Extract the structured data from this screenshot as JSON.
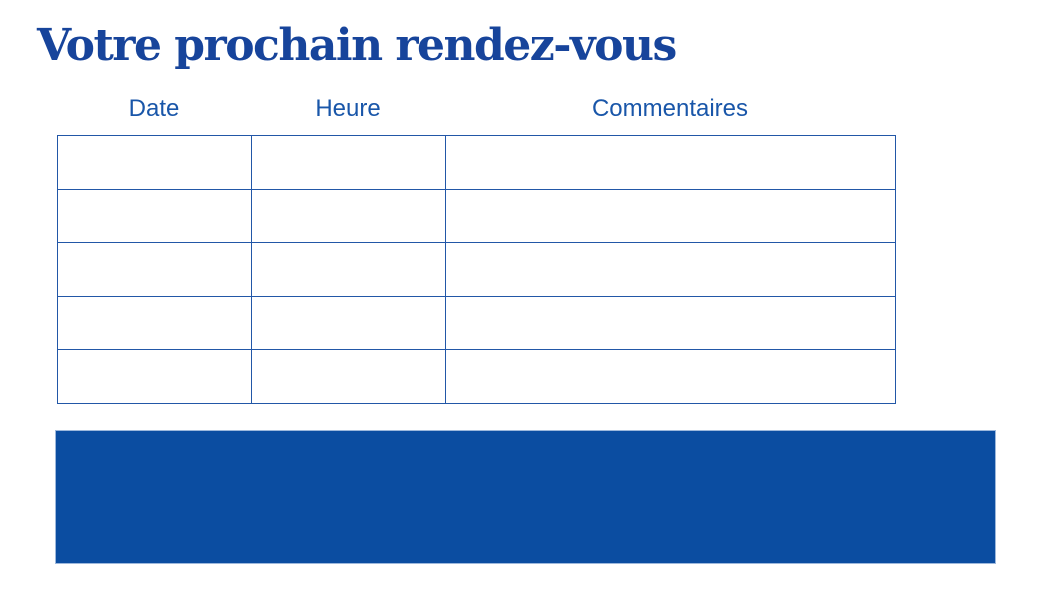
{
  "page": {
    "title": "Votre prochain rendez-vous"
  },
  "table": {
    "headers": [
      "Date",
      "Heure",
      "Commentaires"
    ],
    "rows": [
      [
        "",
        "",
        ""
      ],
      [
        "",
        "",
        ""
      ],
      [
        "",
        "",
        ""
      ],
      [
        "",
        "",
        ""
      ],
      [
        "",
        "",
        ""
      ]
    ]
  },
  "colors": {
    "title_color": "#17449B",
    "header_color": "#1956A9",
    "border_color": "#2257A7",
    "band_color": "#0B4DA1",
    "band_edge_color": "#9DB8DC"
  }
}
